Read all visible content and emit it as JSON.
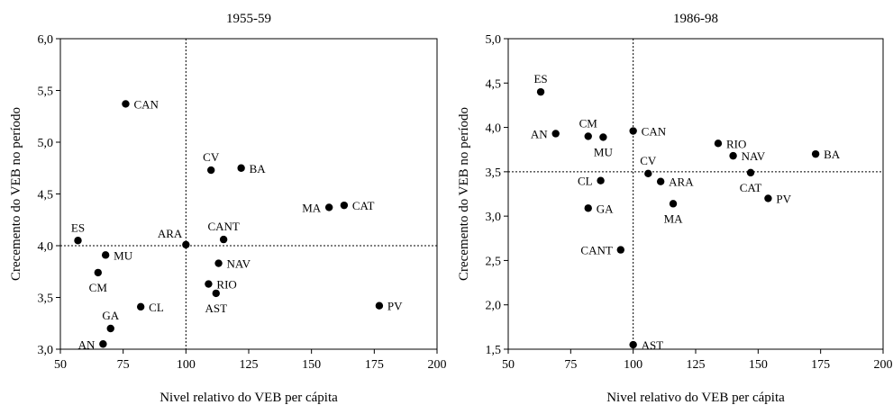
{
  "chart_data": [
    {
      "type": "scatter",
      "title": "1955-59",
      "xlabel": "Nivel relativo do VEB per cápita",
      "ylabel": "Crecemento do VEB no período",
      "xlim": [
        50,
        200
      ],
      "ylim": [
        3.0,
        6.0
      ],
      "xticks": [
        "50",
        "75",
        "100",
        "125",
        "150",
        "175",
        "200"
      ],
      "yticks": [
        "3,0",
        "3,5",
        "4,0",
        "4,5",
        "5,0",
        "5,5",
        "6,0"
      ],
      "reference_lines": {
        "x": 100,
        "y": 4.0
      },
      "points": [
        {
          "label": "CAN",
          "x": 76,
          "y": 5.37
        },
        {
          "label": "CV",
          "x": 110,
          "y": 4.73
        },
        {
          "label": "BA",
          "x": 122,
          "y": 4.75
        },
        {
          "label": "MA",
          "x": 157,
          "y": 4.37
        },
        {
          "label": "CAT",
          "x": 163,
          "y": 4.39
        },
        {
          "label": "ES",
          "x": 57,
          "y": 4.05
        },
        {
          "label": "ARA",
          "x": 100,
          "y": 4.01
        },
        {
          "label": "CANT",
          "x": 115,
          "y": 4.06
        },
        {
          "label": "MU",
          "x": 68,
          "y": 3.91
        },
        {
          "label": "CM",
          "x": 65,
          "y": 3.74
        },
        {
          "label": "NAV",
          "x": 113,
          "y": 3.83
        },
        {
          "label": "RIO",
          "x": 109,
          "y": 3.63
        },
        {
          "label": "AST",
          "x": 112,
          "y": 3.54
        },
        {
          "label": "CL",
          "x": 82,
          "y": 3.41
        },
        {
          "label": "PV",
          "x": 177,
          "y": 3.42
        },
        {
          "label": "GA",
          "x": 70,
          "y": 3.2
        },
        {
          "label": "AN",
          "x": 67,
          "y": 3.05
        }
      ]
    },
    {
      "type": "scatter",
      "title": "1986-98",
      "xlabel": "Nivel relativo do VEB per cápita",
      "ylabel": "Crecemento do VEB no período",
      "xlim": [
        50,
        200
      ],
      "ylim": [
        1.5,
        5.0
      ],
      "xticks": [
        "50",
        "75",
        "100",
        "125",
        "150",
        "175",
        "200"
      ],
      "yticks": [
        "1,5",
        "2,0",
        "2,5",
        "3,0",
        "3,5",
        "4,0",
        "4,5",
        "5,0"
      ],
      "reference_lines": {
        "x": 100,
        "y": 3.5
      },
      "points": [
        {
          "label": "ES",
          "x": 63,
          "y": 4.4
        },
        {
          "label": "AN",
          "x": 69,
          "y": 3.93
        },
        {
          "label": "CM",
          "x": 82,
          "y": 3.9
        },
        {
          "label": "MU",
          "x": 88,
          "y": 3.89
        },
        {
          "label": "CAN",
          "x": 100,
          "y": 3.96
        },
        {
          "label": "RIO",
          "x": 134,
          "y": 3.82
        },
        {
          "label": "NAV",
          "x": 140,
          "y": 3.68
        },
        {
          "label": "BA",
          "x": 173,
          "y": 3.7
        },
        {
          "label": "CV",
          "x": 106,
          "y": 3.48
        },
        {
          "label": "CAT",
          "x": 147,
          "y": 3.49
        },
        {
          "label": "CL",
          "x": 87,
          "y": 3.4
        },
        {
          "label": "ARA",
          "x": 111,
          "y": 3.39
        },
        {
          "label": "PV",
          "x": 154,
          "y": 3.2
        },
        {
          "label": "MA",
          "x": 116,
          "y": 3.14
        },
        {
          "label": "GA",
          "x": 82,
          "y": 3.09
        },
        {
          "label": "CANT",
          "x": 95,
          "y": 2.62
        },
        {
          "label": "AST",
          "x": 100,
          "y": 1.55
        }
      ]
    }
  ]
}
